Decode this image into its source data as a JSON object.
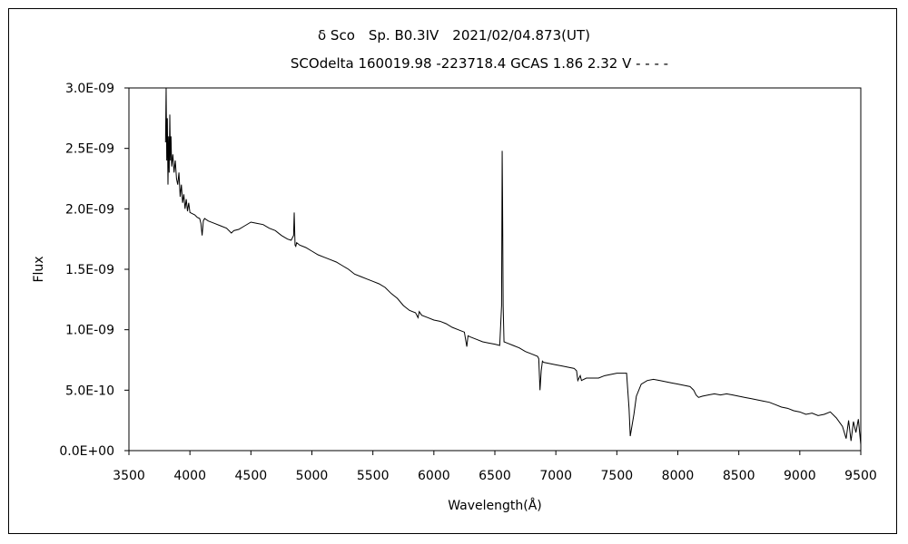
{
  "chart_data": {
    "type": "line",
    "title": "δ Sco　Sp. B0.3IV　2021/02/04.873(UT)",
    "subtitle": "SCOdelta 160019.98 -223718.4 GCAS 1.86 2.32 V - - - -",
    "xlabel": "Wavelength(Å)",
    "ylabel": "Flux",
    "xlim": [
      3500,
      9500
    ],
    "ylim": [
      0,
      3e-09
    ],
    "x_ticks": [
      "3500",
      "4000",
      "4500",
      "5000",
      "5500",
      "6000",
      "6500",
      "7000",
      "7500",
      "8000",
      "8500",
      "9000",
      "9500"
    ],
    "y_ticks": [
      "0.0E+00",
      "5.0E-10",
      "1.0E-09",
      "1.5E-09",
      "2.0E-09",
      "2.5E-09",
      "3.0E-09"
    ],
    "grid": false,
    "legend": "none",
    "line_color": "#000000",
    "series": [
      {
        "x": [
          3800,
          3805,
          3810,
          3815,
          3820,
          3825,
          3830,
          3835,
          3840,
          3845,
          3850,
          3860,
          3870,
          3880,
          3890,
          3900,
          3910,
          3920,
          3930,
          3940,
          3950,
          3960,
          3970,
          3980,
          3990,
          4000,
          4020,
          4040,
          4060,
          4080,
          4090,
          4100,
          4110,
          4120,
          4150,
          4200,
          4250,
          4300,
          4340,
          4360,
          4400,
          4450,
          4500,
          4550,
          4600,
          4650,
          4700,
          4750,
          4800,
          4830,
          4850,
          4855,
          4862,
          4868,
          4875,
          4900,
          4950,
          5000,
          5050,
          5100,
          5150,
          5200,
          5250,
          5300,
          5350,
          5400,
          5450,
          5500,
          5550,
          5600,
          5650,
          5700,
          5750,
          5800,
          5850,
          5870,
          5880,
          5900,
          5950,
          6000,
          6050,
          6100,
          6150,
          6200,
          6250,
          6270,
          6280,
          6300,
          6350,
          6400,
          6450,
          6500,
          6540,
          6555,
          6560,
          6563,
          6568,
          6575,
          6600,
          6650,
          6700,
          6750,
          6800,
          6850,
          6860,
          6870,
          6880,
          6890,
          6900,
          6950,
          7000,
          7050,
          7100,
          7150,
          7170,
          7180,
          7200,
          7210,
          7250,
          7300,
          7350,
          7400,
          7450,
          7500,
          7550,
          7580,
          7600,
          7610,
          7620,
          7640,
          7660,
          7700,
          7750,
          7800,
          7850,
          7900,
          7950,
          8000,
          8050,
          8100,
          8130,
          8150,
          8170,
          8200,
          8250,
          8300,
          8350,
          8400,
          8450,
          8500,
          8550,
          8600,
          8650,
          8700,
          8750,
          8800,
          8850,
          8900,
          8950,
          9000,
          9050,
          9100,
          9150,
          9200,
          9250,
          9300,
          9350,
          9380,
          9400,
          9420,
          9440,
          9460,
          9480,
          9500
        ],
        "y": [
          2.55e-09,
          3e-09,
          2.4e-09,
          2.75e-09,
          2.2e-09,
          2.6e-09,
          2.3e-09,
          2.78e-09,
          2.4e-09,
          2.6e-09,
          2.35e-09,
          2.45e-09,
          2.3e-09,
          2.4e-09,
          2.25e-09,
          2.2e-09,
          2.3e-09,
          2.1e-09,
          2.2e-09,
          2.05e-09,
          2.12e-09,
          2e-09,
          2.08e-09,
          1.98e-09,
          2.05e-09,
          1.97e-09,
          1.96e-09,
          1.95e-09,
          1.93e-09,
          1.92e-09,
          1.88e-09,
          1.78e-09,
          1.9e-09,
          1.92e-09,
          1.9e-09,
          1.88e-09,
          1.86e-09,
          1.84e-09,
          1.8e-09,
          1.82e-09,
          1.83e-09,
          1.86e-09,
          1.89e-09,
          1.88e-09,
          1.87e-09,
          1.84e-09,
          1.82e-09,
          1.78e-09,
          1.75e-09,
          1.74e-09,
          1.78e-09,
          1.97e-09,
          1.7e-09,
          1.69e-09,
          1.72e-09,
          1.7e-09,
          1.68e-09,
          1.65e-09,
          1.62e-09,
          1.6e-09,
          1.58e-09,
          1.56e-09,
          1.53e-09,
          1.5e-09,
          1.46e-09,
          1.44e-09,
          1.42e-09,
          1.4e-09,
          1.38e-09,
          1.35e-09,
          1.3e-09,
          1.26e-09,
          1.2e-09,
          1.16e-09,
          1.14e-09,
          1.1e-09,
          1.15e-09,
          1.12e-09,
          1.1e-09,
          1.08e-09,
          1.07e-09,
          1.05e-09,
          1.02e-09,
          1e-09,
          9.8e-10,
          8.6e-10,
          9.5e-10,
          9.4e-10,
          9.2e-10,
          9e-10,
          8.9e-10,
          8.8e-10,
          8.7e-10,
          1.2e-09,
          2.48e-09,
          2.1e-09,
          1.2e-09,
          9e-10,
          8.9e-10,
          8.7e-10,
          8.5e-10,
          8.2e-10,
          8e-10,
          7.8e-10,
          7.6e-10,
          5e-10,
          6.6e-10,
          7.4e-10,
          7.3e-10,
          7.2e-10,
          7.1e-10,
          7e-10,
          6.9e-10,
          6.8e-10,
          6.6e-10,
          5.8e-10,
          6.2e-10,
          5.8e-10,
          6e-10,
          6e-10,
          6e-10,
          6.2e-10,
          6.3e-10,
          6.4e-10,
          6.4e-10,
          6.4e-10,
          3.5e-10,
          1.2e-10,
          1.8e-10,
          3e-10,
          4.5e-10,
          5.5e-10,
          5.8e-10,
          5.9e-10,
          5.8e-10,
          5.7e-10,
          5.6e-10,
          5.5e-10,
          5.4e-10,
          5.3e-10,
          5e-10,
          4.6e-10,
          4.4e-10,
          4.5e-10,
          4.6e-10,
          4.7e-10,
          4.6e-10,
          4.7e-10,
          4.6e-10,
          4.5e-10,
          4.4e-10,
          4.3e-10,
          4.2e-10,
          4.1e-10,
          4e-10,
          3.8e-10,
          3.6e-10,
          3.5e-10,
          3.3e-10,
          3.2e-10,
          3e-10,
          3.1e-10,
          2.9e-10,
          3e-10,
          3.2e-10,
          2.7e-10,
          2e-10,
          1e-10,
          2.5e-10,
          8e-11,
          2.4e-10,
          1.5e-10,
          2.6e-10,
          5e-11
        ]
      }
    ]
  }
}
